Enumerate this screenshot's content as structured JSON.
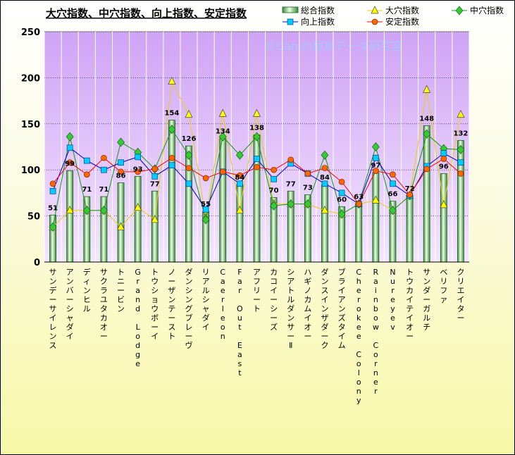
{
  "chart_data": {
    "type": "bar",
    "title": "大穴指数、中穴指数、向上指数、安定指数",
    "watermark": "©Caniの競馬データ研究室",
    "ylim": [
      0,
      250
    ],
    "yticks": [
      0,
      50,
      100,
      150,
      200,
      250
    ],
    "categories": [
      "サンデーサイレンス",
      "アンバーシャダイ",
      "ディンヒル",
      "サクラユタカオー",
      "トニービン",
      "Grand Lodge",
      "トウショウボーイ",
      "ノーザンテースト",
      "ダンシングブレーヴ",
      "リアルシャダイ",
      "Caerleon",
      "Far Out East",
      "アフリート",
      "カコイーシーズ",
      "シアトルダンサーⅡ",
      "ハギノカムイオー",
      "ダンスインザダーク",
      "ブライアンズタイム",
      "Cherokee Colony",
      "Rainbow Corner",
      "Nureyev",
      "トウカイテイオー",
      "サンダーガルチ",
      "ベリファ",
      "クリエイター"
    ],
    "series": [
      {
        "name": "総合指数",
        "type": "bar",
        "color": "#b8e0a8",
        "values": [
          51,
          99,
          71,
          71,
          86,
          93,
          77,
          154,
          126,
          55,
          134,
          84,
          138,
          70,
          77,
          73,
          84,
          60,
          63,
          97,
          66,
          72,
          148,
          96,
          132
        ]
      },
      {
        "name": "大穴指数",
        "type": "line",
        "marker": "triangle",
        "color": "#ffff00",
        "values": [
          38,
          56,
          56,
          56,
          38,
          59,
          46,
          196,
          160,
          48,
          161,
          56,
          161,
          63,
          63,
          63,
          56,
          52,
          63,
          67,
          56,
          72,
          187,
          62,
          160
        ]
      },
      {
        "name": "中穴指数",
        "type": "line",
        "marker": "diamond",
        "color": "#33cc33",
        "values": [
          38,
          136,
          56,
          56,
          130,
          119,
          101,
          144,
          116,
          46,
          136,
          116,
          136,
          61,
          63,
          63,
          116,
          52,
          63,
          125,
          56,
          72,
          139,
          123,
          122
        ]
      },
      {
        "name": "向上指数",
        "type": "line",
        "marker": "square",
        "color": "#00ccff",
        "values": [
          77,
          124,
          110,
          100,
          108,
          114,
          93,
          105,
          85,
          57,
          98,
          85,
          112,
          90,
          107,
          96,
          85,
          75,
          63,
          113,
          85,
          72,
          104,
          118,
          108
        ]
      },
      {
        "name": "安定指数",
        "type": "line",
        "marker": "circle",
        "color": "#ff6600",
        "values": [
          85,
          108,
          95,
          113,
          98,
          98,
          101,
          113,
          102,
          91,
          98,
          94,
          103,
          100,
          111,
          96,
          102,
          87,
          63,
          99,
          95,
          73,
          101,
          112,
          96
        ]
      }
    ]
  }
}
